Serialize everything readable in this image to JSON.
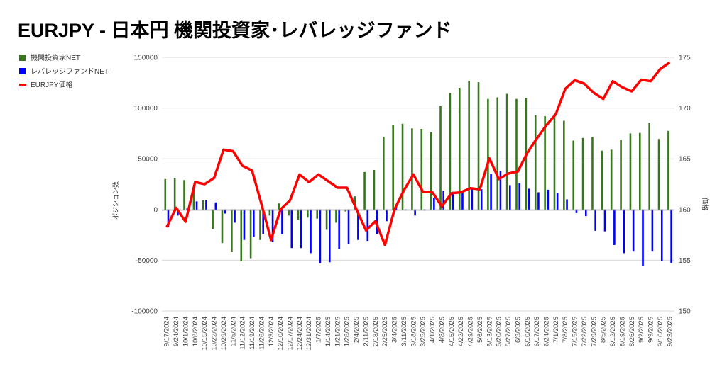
{
  "chart_data": {
    "type": "bar+line",
    "title": "EURJPY - 日本円 機関投資家･レバレッジファンド",
    "ylabel_left": "ポジション数",
    "ylabel_right": "価格",
    "ylim_left": [
      -100000,
      150000
    ],
    "ylim_right": [
      150,
      175
    ],
    "left_ticks": [
      "150000",
      "100000",
      "50000",
      "0",
      "-50000",
      "-100000"
    ],
    "right_ticks": [
      "175",
      "170",
      "165",
      "160",
      "155",
      "150"
    ],
    "grid": true,
    "legend_position": "left",
    "categories": [
      "9/17/2024",
      "9/24/2024",
      "10/1/2024",
      "10/8/2024",
      "10/15/2024",
      "10/22/2024",
      "10/29/2024",
      "11/5/2024",
      "11/12/2024",
      "11/19/2024",
      "11/26/2024",
      "12/3/2024",
      "12/10/2024",
      "12/17/2024",
      "12/24/2024",
      "12/31/2024",
      "1/7/2025",
      "1/14/2025",
      "1/21/2025",
      "1/28/2025",
      "2/4/2025",
      "2/11/2025",
      "2/18/2025",
      "2/25/2025",
      "3/4/2025",
      "3/11/2025",
      "3/18/2025",
      "3/25/2025",
      "4/1/2025",
      "4/8/2025",
      "4/15/2025",
      "4/22/2025",
      "4/29/2025",
      "5/6/2025",
      "5/13/2025",
      "5/20/2025",
      "5/27/2025",
      "6/3/2025",
      "6/10/2025",
      "6/17/2025",
      "6/24/2025",
      "7/1/2025",
      "7/8/2025",
      "7/15/2025",
      "7/22/2025",
      "7/29/2025",
      "8/5/2025",
      "8/12/2025",
      "8/19/2025",
      "8/26/2025",
      "9/2/2025",
      "9/9/2025",
      "9/16/2025",
      "9/23/2025"
    ],
    "series": [
      {
        "name": "機関投資家NET",
        "type": "bar",
        "axis": "left",
        "color": "#38761d",
        "values": [
          30000,
          31000,
          29000,
          20000,
          9000,
          -19000,
          -33000,
          -42000,
          -51000,
          -48000,
          -30000,
          -6000,
          6000,
          -6000,
          -10000,
          -8000,
          -9000,
          -20000,
          -13000,
          -2000,
          13000,
          37000,
          39000,
          71500,
          83500,
          84500,
          80000,
          79500,
          76000,
          102500,
          115000,
          120000,
          127000,
          125500,
          109000,
          110500,
          114000,
          109000,
          110000,
          93000,
          92000,
          94000,
          87500,
          68000,
          70500,
          71500,
          58000,
          59000,
          69000,
          75000,
          75500,
          85500,
          69500,
          77500
        ]
      },
      {
        "name": "レバレッジファンドNET",
        "type": "bar",
        "axis": "left",
        "color": "#0000ff",
        "values": [
          -17000,
          -6000,
          1000,
          8000,
          9000,
          7000,
          -4000,
          -13000,
          -30000,
          -27000,
          -24000,
          -32000,
          -24500,
          -38000,
          -38000,
          -43000,
          -53000,
          -52000,
          -39000,
          -34000,
          -30000,
          -31000,
          -24000,
          -11500,
          2500,
          -500,
          -6000,
          -1000,
          11000,
          18500,
          17500,
          18500,
          20000,
          20000,
          35000,
          38000,
          24000,
          26000,
          20500,
          17000,
          19500,
          16500,
          10000,
          -3500,
          -6500,
          -21000,
          -21500,
          -35000,
          -43000,
          -41500,
          -56000,
          -41500,
          -50500,
          -53000
        ]
      },
      {
        "name": "EURJPY価格",
        "type": "line",
        "axis": "right",
        "color": "#ff0000",
        "values": [
          158.25,
          160.17,
          158.8,
          162.7,
          162.5,
          163.1,
          165.9,
          165.75,
          164.3,
          163.85,
          160.5,
          157.0,
          160.0,
          160.9,
          163.45,
          162.7,
          163.45,
          162.8,
          162.15,
          162.15,
          160.0,
          157.95,
          158.85,
          156.5,
          160.0,
          161.9,
          163.45,
          161.75,
          161.7,
          160.3,
          161.6,
          161.7,
          162.1,
          162.0,
          165.05,
          163.0,
          163.55,
          163.75,
          165.6,
          167.0,
          168.3,
          169.4,
          171.9,
          172.75,
          172.4,
          171.5,
          170.9,
          172.65,
          172.05,
          171.65,
          172.8,
          172.65,
          173.85,
          174.5
        ]
      }
    ]
  }
}
